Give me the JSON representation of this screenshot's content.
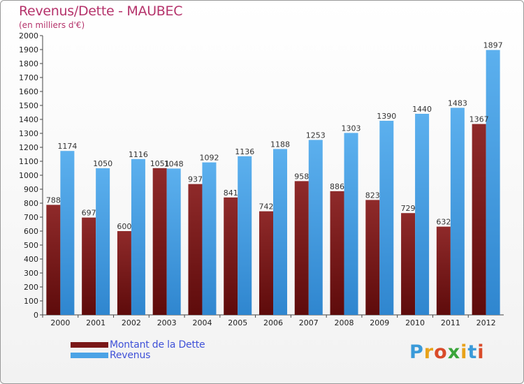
{
  "chart_data": {
    "type": "bar",
    "title": "Revenus/Dette - MAUBEC",
    "subtitle": "(en milliers d'€)",
    "categories": [
      "2000",
      "2001",
      "2002",
      "2003",
      "2004",
      "2005",
      "2006",
      "2007",
      "2008",
      "2009",
      "2010",
      "2011",
      "2012"
    ],
    "series": [
      {
        "name": "Montant de la Dette",
        "values": [
          788,
          697,
          600,
          1051,
          937,
          841,
          742,
          958,
          886,
          823,
          729,
          632,
          1367
        ]
      },
      {
        "name": "Revenus",
        "values": [
          1174,
          1050,
          1116,
          1048,
          1092,
          1136,
          1188,
          1253,
          1303,
          1390,
          1440,
          1483,
          1897
        ]
      }
    ],
    "ylim": [
      0,
      2000
    ],
    "yticks": [
      0,
      100,
      200,
      300,
      400,
      500,
      600,
      700,
      800,
      900,
      1000,
      1100,
      1200,
      1300,
      1400,
      1500,
      1600,
      1700,
      1800,
      1900,
      2000
    ],
    "grid": false,
    "legend": "bottom-left",
    "colors": {
      "title": "#b5336b",
      "legend_text": "#3f51d8",
      "debt": "#7a1818",
      "revenue": "#4ba3e6"
    }
  },
  "logo": {
    "letters": [
      "P",
      "r",
      "o",
      "x",
      "i",
      "t",
      "i"
    ],
    "colors": [
      "#3a9ad9",
      "#e8a21a",
      "#d94b2a",
      "#3aa53a",
      "#e8a21a",
      "#3a9ad9",
      "#d94b2a"
    ]
  }
}
